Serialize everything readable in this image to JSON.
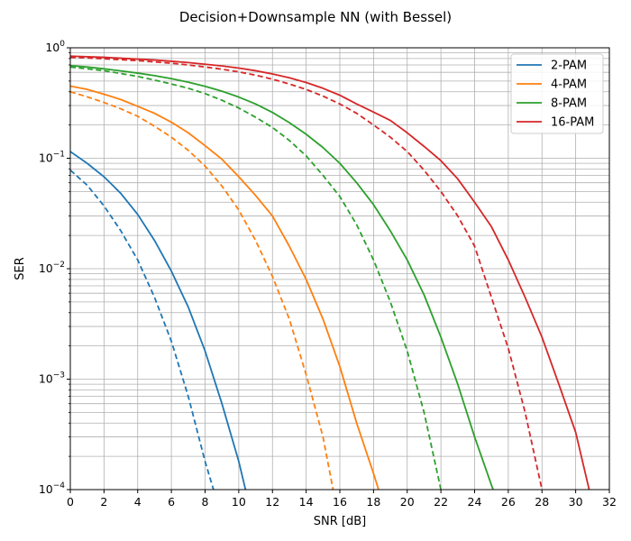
{
  "chart_data": {
    "type": "line",
    "title": "Decision+Downsample NN (with Bessel)",
    "xlabel": "SNR [dB]",
    "ylabel": "SER",
    "xlim": [
      0,
      32
    ],
    "ylim": [
      0.0001,
      1
    ],
    "yscale": "log",
    "grid": true,
    "minor_grid_y": true,
    "legend_position": "top-right",
    "xticks": [
      0,
      2,
      4,
      6,
      8,
      10,
      12,
      14,
      16,
      18,
      20,
      22,
      24,
      26,
      28,
      30,
      32
    ],
    "xtick_labels": [
      "0",
      "2",
      "4",
      "6",
      "8",
      "10",
      "12",
      "14",
      "16",
      "18",
      "20",
      "22",
      "24",
      "26",
      "28",
      "30",
      "32"
    ],
    "yticks": [
      {
        "value": 0.0001,
        "base": "10",
        "exp": "−4"
      },
      {
        "value": 0.001,
        "base": "10",
        "exp": "−3"
      },
      {
        "value": 0.01,
        "base": "10",
        "exp": "−2"
      },
      {
        "value": 0.1,
        "base": "10",
        "exp": "−1"
      },
      {
        "value": 1,
        "base": "10",
        "exp": "0"
      }
    ],
    "series": [
      {
        "name": "2-PAM",
        "color": "#1f77b4",
        "solid": {
          "x": [
            0,
            1,
            2,
            3,
            4,
            5,
            6,
            7,
            8,
            9,
            10,
            10.4
          ],
          "y": [
            0.115,
            0.09,
            0.068,
            0.048,
            0.031,
            0.018,
            0.0095,
            0.0045,
            0.0018,
            0.0006,
            0.00018,
            0.0001
          ]
        },
        "dashed": {
          "x": [
            0,
            1,
            2,
            3,
            4,
            5,
            6,
            7,
            8,
            8.5
          ],
          "y": [
            0.078,
            0.057,
            0.037,
            0.022,
            0.012,
            0.0055,
            0.0022,
            0.0007,
            0.00018,
            0.0001
          ]
        }
      },
      {
        "name": "4-PAM",
        "color": "#ff7f0e",
        "solid": {
          "x": [
            0,
            1,
            2,
            3,
            4,
            5,
            6,
            7,
            8,
            9,
            10,
            11,
            12,
            13,
            14,
            15,
            16,
            17,
            18,
            18.3
          ],
          "y": [
            0.45,
            0.42,
            0.38,
            0.34,
            0.295,
            0.255,
            0.212,
            0.17,
            0.13,
            0.098,
            0.068,
            0.046,
            0.03,
            0.016,
            0.008,
            0.0035,
            0.0013,
            0.0004,
            0.00014,
            0.0001
          ]
        },
        "dashed": {
          "x": [
            0,
            1,
            2,
            3,
            4,
            5,
            6,
            7,
            8,
            9,
            10,
            11,
            12,
            13,
            14,
            15,
            15.6
          ],
          "y": [
            0.4,
            0.36,
            0.32,
            0.28,
            0.24,
            0.195,
            0.155,
            0.118,
            0.085,
            0.056,
            0.034,
            0.018,
            0.0085,
            0.0035,
            0.0011,
            0.0003,
            0.0001
          ]
        }
      },
      {
        "name": "8-PAM",
        "color": "#2ca02c",
        "solid": {
          "x": [
            0,
            1,
            2,
            3,
            4,
            5,
            6,
            7,
            8,
            9,
            10,
            11,
            12,
            13,
            14,
            15,
            16,
            17,
            18,
            19,
            20,
            21,
            22,
            23,
            24,
            25,
            25.1
          ],
          "y": [
            0.69,
            0.67,
            0.645,
            0.618,
            0.59,
            0.56,
            0.525,
            0.488,
            0.448,
            0.405,
            0.358,
            0.31,
            0.26,
            0.21,
            0.165,
            0.125,
            0.09,
            0.06,
            0.038,
            0.022,
            0.012,
            0.0058,
            0.0024,
            0.0009,
            0.0003,
            0.00011,
            0.0001
          ]
        },
        "dashed": {
          "x": [
            0,
            1,
            2,
            3,
            4,
            5,
            6,
            7,
            8,
            9,
            10,
            11,
            12,
            13,
            14,
            15,
            16,
            17,
            18,
            19,
            20,
            21,
            22
          ],
          "y": [
            0.67,
            0.645,
            0.62,
            0.585,
            0.55,
            0.51,
            0.47,
            0.43,
            0.385,
            0.335,
            0.285,
            0.235,
            0.19,
            0.145,
            0.105,
            0.07,
            0.045,
            0.025,
            0.012,
            0.005,
            0.0018,
            0.0005,
            0.0001
          ]
        }
      },
      {
        "name": "16-PAM",
        "color": "#d62728",
        "solid": {
          "x": [
            0,
            1,
            2,
            3,
            4,
            5,
            6,
            7,
            8,
            9,
            10,
            11,
            12,
            13,
            14,
            15,
            16,
            17,
            18,
            19,
            20,
            21,
            22,
            23,
            24,
            25,
            26,
            27,
            28,
            29,
            30,
            30.8
          ],
          "y": [
            0.84,
            0.83,
            0.82,
            0.805,
            0.79,
            0.775,
            0.755,
            0.735,
            0.71,
            0.685,
            0.655,
            0.62,
            0.58,
            0.535,
            0.485,
            0.43,
            0.372,
            0.31,
            0.262,
            0.22,
            0.17,
            0.128,
            0.095,
            0.065,
            0.04,
            0.024,
            0.012,
            0.0055,
            0.0024,
            0.0009,
            0.00033,
            0.0001
          ]
        },
        "dashed": {
          "x": [
            0,
            1,
            2,
            3,
            4,
            5,
            6,
            7,
            8,
            9,
            10,
            11,
            12,
            13,
            14,
            15,
            16,
            17,
            18,
            19,
            20,
            21,
            22,
            23,
            24,
            25,
            26,
            27,
            28
          ],
          "y": [
            0.82,
            0.81,
            0.795,
            0.78,
            0.765,
            0.745,
            0.725,
            0.7,
            0.67,
            0.64,
            0.605,
            0.565,
            0.52,
            0.47,
            0.42,
            0.365,
            0.31,
            0.255,
            0.2,
            0.155,
            0.115,
            0.078,
            0.05,
            0.03,
            0.016,
            0.0055,
            0.0019,
            0.0005,
            0.0001
          ]
        }
      }
    ]
  }
}
